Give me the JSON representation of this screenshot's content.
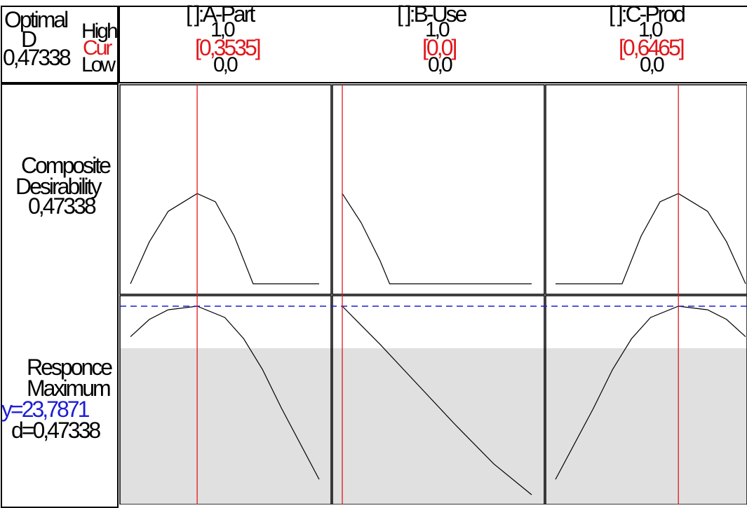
{
  "header": {
    "optimal_label": "Optimal",
    "d_label": "D",
    "d_value": "0,47338",
    "high_label": "High",
    "cur_label": "Cur",
    "low_label": "Low"
  },
  "factors": [
    {
      "name": "[ ]:A-Part",
      "high": "1,0",
      "current": "[0,3535]",
      "low": "0,0"
    },
    {
      "name": "[ ]:B-Use",
      "high": "1,0",
      "current": "[0,0]",
      "low": "0,0"
    },
    {
      "name": "[ ]:C-Prod",
      "high": "1,0",
      "current": "[0,6465]",
      "low": "0,0"
    }
  ],
  "rows": {
    "composite": {
      "line1": "Composite",
      "line2": "Desirability",
      "value": "0,47338"
    },
    "response": {
      "line1": "Responce",
      "line2": "Maximum",
      "y_text": "y=23,7871",
      "d_text": "d=0,47338"
    }
  },
  "colors": {
    "cursor": "#e0181c",
    "reference": "#1d1dd6",
    "band": "#e0e0e0"
  },
  "chart_data": {
    "type": "line",
    "x_range": [
      0,
      1
    ],
    "current_settings": {
      "A-Part": 0.3535,
      "B-Use": 0.0,
      "C-Prod": 0.6465
    },
    "composite_desirability": {
      "y_range": [
        0,
        1
      ],
      "series": [
        {
          "factor": "A-Part",
          "x": [
            0,
            0.1,
            0.2,
            0.3535,
            0.45,
            0.55,
            0.65,
            1.0
          ],
          "y": [
            0.0,
            0.22,
            0.38,
            0.47338,
            0.43,
            0.25,
            0.0,
            0.0
          ]
        },
        {
          "factor": "B-Use",
          "x": [
            0,
            0.1,
            0.2,
            0.25,
            0.3,
            1.0
          ],
          "y": [
            0.47338,
            0.32,
            0.12,
            0.0,
            0.0,
            0.0
          ]
        },
        {
          "factor": "C-Prod",
          "x": [
            0,
            0.35,
            0.45,
            0.55,
            0.6465,
            0.8,
            0.9,
            1.0
          ],
          "y": [
            0.0,
            0.0,
            0.25,
            0.43,
            0.47338,
            0.38,
            0.22,
            0.0
          ]
        }
      ]
    },
    "response_maximum": {
      "y_value": 23.7871,
      "desirability": 0.47338,
      "series": [
        {
          "factor": "A-Part",
          "x": [
            0,
            0.1,
            0.2,
            0.3535,
            0.5,
            0.6,
            0.7,
            0.8,
            1.0
          ],
          "y": [
            22.2,
            23.1,
            23.6,
            23.7871,
            23.2,
            22.1,
            20.5,
            18.5,
            14.8
          ]
        },
        {
          "factor": "B-Use",
          "x": [
            0,
            0.2,
            0.4,
            0.6,
            0.8,
            1.0
          ],
          "y": [
            23.7871,
            21.8,
            19.7,
            17.6,
            15.6,
            14.0
          ]
        },
        {
          "factor": "C-Prod",
          "x": [
            0,
            0.2,
            0.3,
            0.4,
            0.5,
            0.6465,
            0.8,
            0.9,
            1.0
          ],
          "y": [
            14.8,
            18.5,
            20.5,
            22.1,
            23.2,
            23.7871,
            23.6,
            23.1,
            22.2
          ]
        }
      ]
    }
  }
}
